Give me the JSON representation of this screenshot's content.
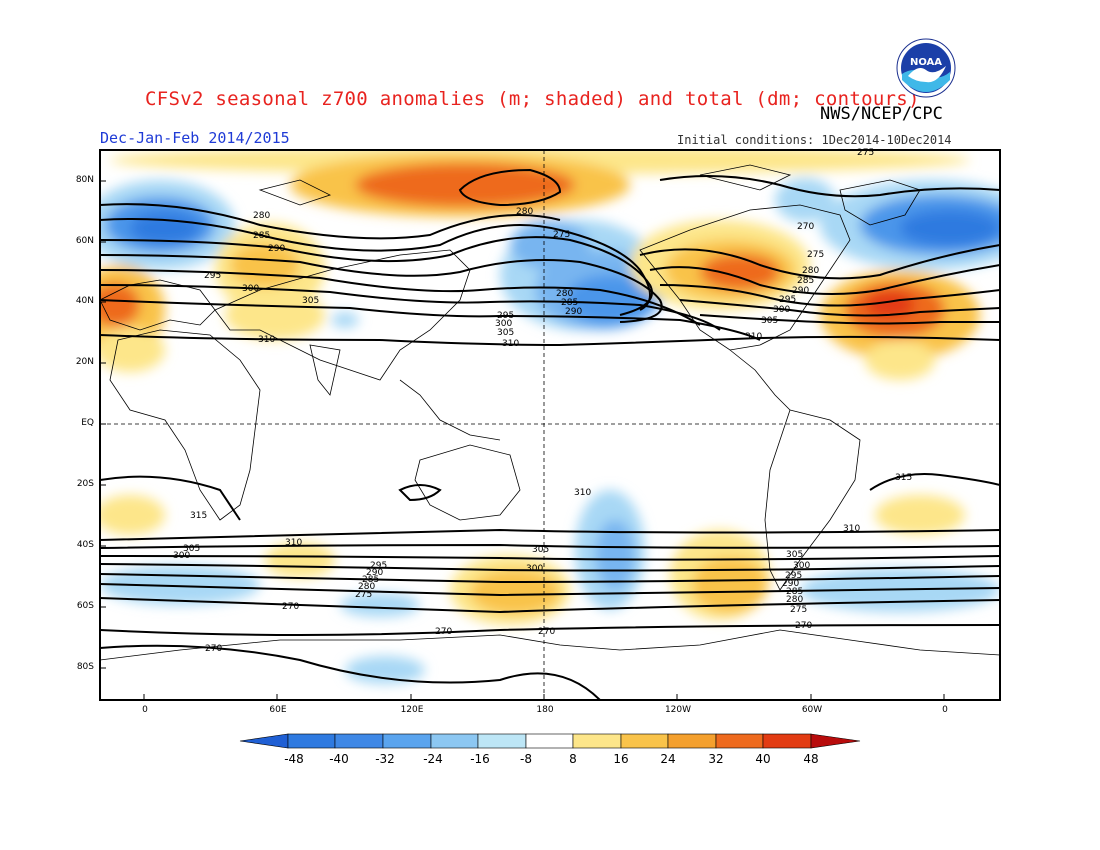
{
  "header": {
    "title": "CFSv2 seasonal z700 anomalies (m; shaded) and total (dm; contours)",
    "agency": "NWS/NCEP/CPC",
    "period": "Dec-Jan-Feb 2014/2015",
    "initial_conditions": "Initial conditions: 1Dec2014-10Dec2014",
    "logo_text": "NOAA"
  },
  "axes": {
    "lat_labels": [
      "80N",
      "60N",
      "40N",
      "20N",
      "EQ",
      "20S",
      "40S",
      "60S",
      "80S"
    ],
    "lon_labels": [
      "0",
      "60E",
      "120E",
      "180",
      "120W",
      "60W",
      "0"
    ]
  },
  "colorbar": {
    "ticks": [
      "-48",
      "-40",
      "-32",
      "-24",
      "-16",
      "-8",
      "8",
      "16",
      "24",
      "32",
      "40",
      "48"
    ],
    "colors": [
      "#1f5fd4",
      "#2f7ae0",
      "#4b96ea",
      "#78b5f0",
      "#a8d8f5",
      "#d4f2f8",
      "#ffffff",
      "#fde68a",
      "#f9c34a",
      "#f4a02e",
      "#ee6a1e",
      "#e23b12",
      "#b80c0c"
    ]
  },
  "contour_labels": {
    "c270": "270",
    "c275": "275",
    "c280": "280",
    "c285": "285",
    "c290": "290",
    "c295": "295",
    "c300": "300",
    "c305": "305",
    "c310": "310",
    "c315": "315"
  }
}
